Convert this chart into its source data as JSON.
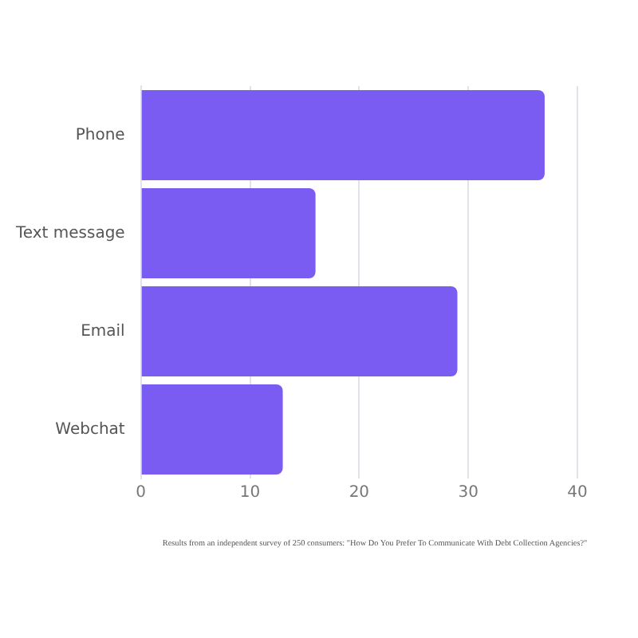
{
  "chart_data": {
    "type": "bar",
    "orientation": "horizontal",
    "categories": [
      "Phone",
      "Text message",
      "Email",
      "Webchat"
    ],
    "values": [
      37,
      16,
      29,
      13
    ],
    "color": "#7b5cf2",
    "xlim": [
      0,
      40
    ],
    "xticks": [
      0,
      10,
      20,
      30,
      40
    ],
    "grid": "x",
    "legend": false,
    "annotations": [
      "Results from an independent survey of 250 consumers: \"How Do You Prefer To Communicate With Debt Collection Agencies?\""
    ]
  }
}
